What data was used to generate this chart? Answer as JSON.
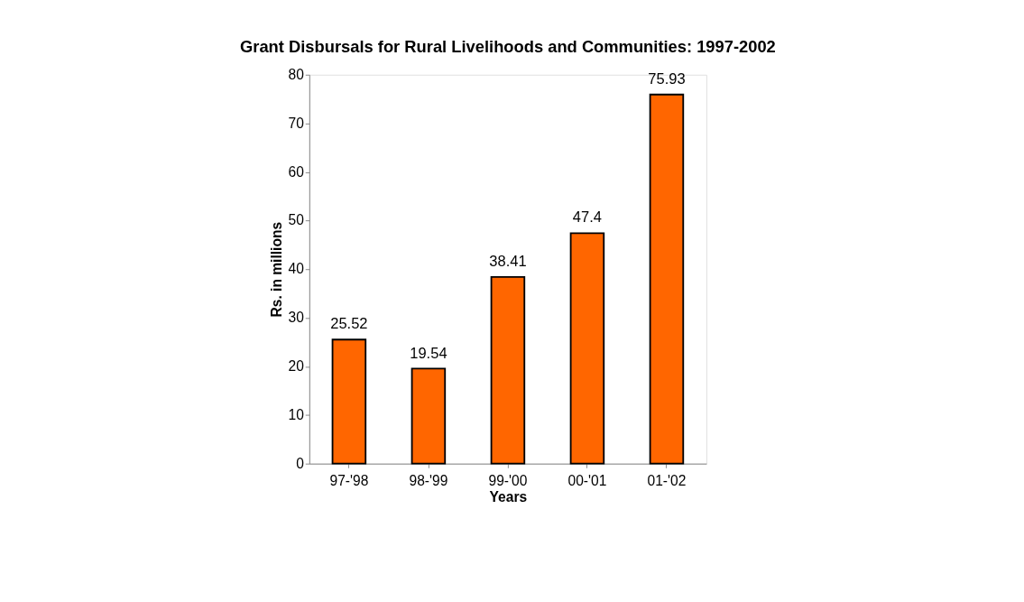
{
  "chart_data": {
    "type": "bar",
    "title": "Grant Disbursals for Rural Livelihoods and Communities: 1997-2002",
    "xlabel": "Years",
    "ylabel": "Rs. in millions",
    "categories": [
      "97-'98",
      "98-'99",
      "99-'00",
      "00-'01",
      "01-'02"
    ],
    "values": [
      25.52,
      19.54,
      38.41,
      47.4,
      75.93
    ],
    "color": "#ff6600",
    "ylim": [
      0,
      80
    ],
    "yticks": [
      0,
      10,
      20,
      30,
      40,
      50,
      60,
      70,
      80
    ],
    "grid": false,
    "data_labels": true
  }
}
